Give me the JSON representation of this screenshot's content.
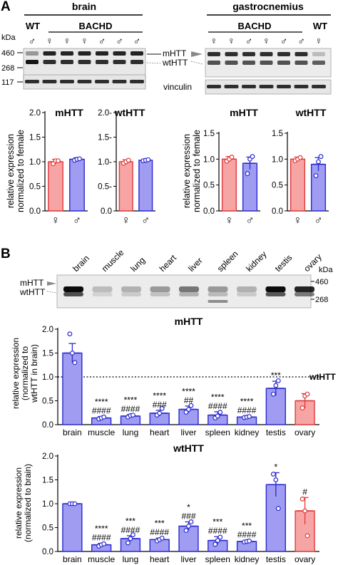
{
  "panel_a": {
    "label": "A",
    "blot_brain": {
      "title": "brain",
      "kda": "kDa",
      "wt": "WT",
      "bachd": "BACHD",
      "sexes": [
        "♂",
        "♀",
        "♀",
        "♀",
        "♂",
        "♂",
        "♂"
      ],
      "ladder": [
        "460",
        "268",
        "117"
      ],
      "bands_mhtt": [
        0.35,
        0.85,
        0.85,
        0.85,
        0.85,
        0.85,
        0.85
      ],
      "bands_wthtt": [
        0.9,
        0.8,
        0.8,
        0.8,
        0.8,
        0.8,
        0.8
      ]
    },
    "blot_gastro": {
      "title": "gastrocnemius",
      "bachd": "BACHD",
      "wt": "WT",
      "sexes": [
        "♀",
        "♀",
        "♂",
        "♀",
        "♂",
        "♂",
        "♀"
      ],
      "labels": [
        "mHTT",
        "wtHTT",
        "vinculin"
      ],
      "bands_mhtt": [
        0.8,
        0.8,
        0.8,
        0.8,
        0.8,
        0.8,
        0.2
      ],
      "bands_wthtt": [
        0.65,
        0.65,
        0.65,
        0.65,
        0.65,
        0.65,
        0.6
      ]
    },
    "ylabel": [
      "relative expression",
      "normalized to female"
    ]
  },
  "panel_b": {
    "label": "B",
    "blot_tissues": [
      "brain",
      "muscle",
      "lung",
      "heart",
      "liver",
      "spleen",
      "kidney",
      "testis",
      "ovary"
    ],
    "blot_labels": [
      "mHTT",
      "wtHTT"
    ],
    "kda": "kDa",
    "ladder": [
      "460",
      "268"
    ],
    "ref_label": "wtHTT",
    "ylabel_mhtt": [
      "relative expression",
      "(normalized to",
      "wtHTT in brain)"
    ],
    "ylabel_wthtt": [
      "relative expression",
      "(normalized to brain)"
    ]
  },
  "chart_data": [
    {
      "type": "bar",
      "title": "mHTT",
      "categories": [
        "♀",
        "♂"
      ],
      "values": [
        1.0,
        1.05
      ],
      "errors": [
        0.05,
        0.03
      ],
      "points": [
        [
          0.96,
          1.02,
          1.02
        ],
        [
          1.03,
          1.05,
          1.06
        ]
      ],
      "colors": [
        "#f7a4a4",
        "#9f9cf2"
      ],
      "edge": [
        "#e03a3a",
        "#2b2bd0"
      ],
      "ylim": [
        0,
        2.0
      ],
      "yticks": [
        "0.0",
        "0.5",
        "1.0",
        "1.5",
        "2.0"
      ]
    },
    {
      "type": "bar",
      "title": "wtHTT",
      "categories": [
        "♀",
        "♂"
      ],
      "values": [
        1.0,
        1.03
      ],
      "errors": [
        0.04,
        0.02
      ],
      "points": [
        [
          0.97,
          1.0,
          1.03
        ],
        [
          1.02,
          1.03,
          1.04
        ]
      ],
      "colors": [
        "#f7a4a4",
        "#9f9cf2"
      ],
      "edge": [
        "#e03a3a",
        "#2b2bd0"
      ],
      "ylim": [
        0,
        2.0
      ],
      "yticks": [
        "0.0",
        "0.5",
        "1.0",
        "1.5",
        "2.0"
      ]
    },
    {
      "type": "bar",
      "title": "mHTT",
      "categories": [
        "♀",
        "♂"
      ],
      "values": [
        1.0,
        0.92
      ],
      "errors": [
        0.05,
        0.12
      ],
      "points": [
        [
          0.96,
          1.0,
          1.04
        ],
        [
          0.72,
          1.0,
          1.05
        ]
      ],
      "colors": [
        "#f7a4a4",
        "#9f9cf2"
      ],
      "edge": [
        "#e03a3a",
        "#2b2bd0"
      ],
      "ylim": [
        0,
        1.5
      ],
      "yticks": [
        "0.0",
        "0.5",
        "1.0",
        "1.5"
      ]
    },
    {
      "type": "bar",
      "title": "wtHTT",
      "categories": [
        "♀",
        "♂"
      ],
      "values": [
        1.0,
        0.9
      ],
      "errors": [
        0.04,
        0.13
      ],
      "points": [
        [
          0.97,
          1.0,
          1.03
        ],
        [
          0.68,
          0.95,
          1.05
        ]
      ],
      "colors": [
        "#f7a4a4",
        "#9f9cf2"
      ],
      "edge": [
        "#e03a3a",
        "#2b2bd0"
      ],
      "ylim": [
        0,
        1.5
      ],
      "yticks": [
        "0.0",
        "0.5",
        "1.0",
        "1.5"
      ]
    },
    {
      "type": "bar",
      "title": "mHTT",
      "categories": [
        "brain",
        "muscle",
        "lung",
        "heart",
        "liver",
        "spleen",
        "kidney",
        "testis",
        "ovary"
      ],
      "values": [
        1.5,
        0.14,
        0.18,
        0.24,
        0.32,
        0.2,
        0.16,
        0.76,
        0.5
      ],
      "errors": [
        0.2,
        0.03,
        0.03,
        0.06,
        0.07,
        0.07,
        0.02,
        0.15,
        0.15
      ],
      "points": [
        [
          1.9,
          1.5,
          1.3
        ],
        [
          0.12,
          0.14,
          0.16
        ],
        [
          0.16,
          0.19,
          0.2
        ],
        [
          0.2,
          0.24,
          0.34
        ],
        [
          0.26,
          0.32,
          0.4
        ],
        [
          0.14,
          0.18,
          0.26
        ],
        [
          0.15,
          0.16,
          0.17
        ],
        [
          0.64,
          0.82,
          0.92
        ],
        [
          0.35,
          0.6,
          0.64
        ]
      ],
      "colors": [
        "#9f9cf2",
        "#9f9cf2",
        "#9f9cf2",
        "#9f9cf2",
        "#9f9cf2",
        "#9f9cf2",
        "#9f9cf2",
        "#9f9cf2",
        "#f7a4a4"
      ],
      "edge": [
        "#2b2bd0",
        "#2b2bd0",
        "#2b2bd0",
        "#2b2bd0",
        "#2b2bd0",
        "#2b2bd0",
        "#2b2bd0",
        "#2b2bd0",
        "#e03a3a"
      ],
      "annotations": [
        [],
        [
          "****",
          "####"
        ],
        [
          "****",
          "####"
        ],
        [
          "****",
          "###"
        ],
        [
          "****",
          "##"
        ],
        [
          "****",
          "####"
        ],
        [
          "****",
          "####"
        ],
        [
          "***"
        ],
        []
      ],
      "reference_line": 1.0,
      "ylim": [
        0,
        2.0
      ],
      "yticks": [
        "0.0",
        "0.5",
        "1.0",
        "1.5",
        "2.0"
      ]
    },
    {
      "type": "bar",
      "title": "wtHTT",
      "categories": [
        "brain",
        "muscle",
        "lung",
        "heart",
        "liver",
        "spleen",
        "kidney",
        "testis",
        "ovary"
      ],
      "values": [
        1.0,
        0.14,
        0.27,
        0.25,
        0.53,
        0.23,
        0.21,
        1.4,
        0.85
      ],
      "errors": [
        0.0,
        0.03,
        0.06,
        0.03,
        0.09,
        0.08,
        0.02,
        0.25,
        0.28
      ],
      "points": [
        [
          1.0,
          1.0,
          1.0
        ],
        [
          0.11,
          0.14,
          0.16
        ],
        [
          0.18,
          0.27,
          0.35
        ],
        [
          0.22,
          0.25,
          0.28
        ],
        [
          0.44,
          0.53,
          0.62
        ],
        [
          0.15,
          0.23,
          0.3
        ],
        [
          0.2,
          0.21,
          0.22
        ],
        [
          1.62,
          1.5,
          0.9
        ],
        [
          1.1,
          0.85,
          0.33
        ]
      ],
      "colors": [
        "#9f9cf2",
        "#9f9cf2",
        "#9f9cf2",
        "#9f9cf2",
        "#9f9cf2",
        "#9f9cf2",
        "#9f9cf2",
        "#9f9cf2",
        "#f7a4a4"
      ],
      "edge": [
        "#2b2bd0",
        "#2b2bd0",
        "#2b2bd0",
        "#2b2bd0",
        "#2b2bd0",
        "#2b2bd0",
        "#2b2bd0",
        "#2b2bd0",
        "#e03a3a"
      ],
      "annotations": [
        [],
        [
          "****",
          "####"
        ],
        [
          "***",
          "####"
        ],
        [
          "***",
          "####"
        ],
        [
          "*",
          "###"
        ],
        [
          "***",
          "####"
        ],
        [
          "***",
          "####"
        ],
        [
          "*"
        ],
        [
          "#"
        ]
      ],
      "ylim": [
        0,
        2.0
      ],
      "yticks": [
        "0.0",
        "0.5",
        "1.0",
        "1.5",
        "2.0"
      ]
    }
  ]
}
